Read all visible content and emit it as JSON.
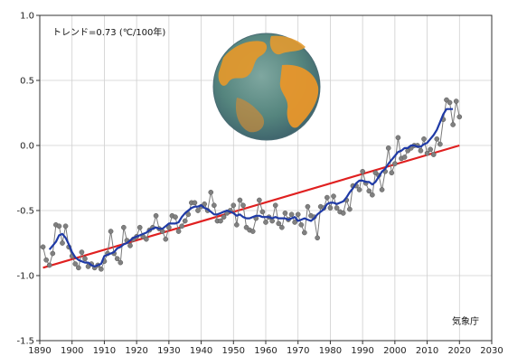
{
  "chart_data": {
    "type": "line",
    "annotation": "トレンド=0.73 (℃/100年)",
    "credit": "気象庁",
    "xlim": [
      1890,
      2030
    ],
    "ylim": [
      -1.5,
      1.0
    ],
    "x_ticks": [
      1890,
      1900,
      1910,
      1920,
      1930,
      1940,
      1950,
      1960,
      1970,
      1980,
      1990,
      2000,
      2010,
      2020,
      2030
    ],
    "y_ticks": [
      1.0,
      0.5,
      0.0,
      -0.5,
      -1.0,
      -1.5
    ],
    "y_tick_labels": [
      "1.0",
      "0.5",
      "0.0",
      "-0.5",
      "-1.0",
      "-1.5"
    ],
    "grid": true,
    "colors": {
      "annual_line": "#7a7a7a",
      "annual_marker": "#808080",
      "moving_average": "#1f3aa6",
      "trend": "#e02020",
      "grid": "#cfcfcf"
    },
    "series": [
      {
        "x": [
          1891,
          1892,
          1893,
          1894,
          1895,
          1896,
          1897,
          1898,
          1899,
          1900,
          1901,
          1902,
          1903,
          1904,
          1905,
          1906,
          1907,
          1908,
          1909,
          1910,
          1911,
          1912,
          1913,
          1914,
          1915,
          1916,
          1917,
          1918,
          1919,
          1920,
          1921,
          1922,
          1923,
          1924,
          1925,
          1926,
          1927,
          1928,
          1929,
          1930,
          1931,
          1932,
          1933,
          1934,
          1935,
          1936,
          1937,
          1938,
          1939,
          1940,
          1941,
          1942,
          1943,
          1944,
          1945,
          1946,
          1947,
          1948,
          1949,
          1950,
          1951,
          1952,
          1953,
          1954,
          1955,
          1956,
          1957,
          1958,
          1959,
          1960,
          1961,
          1962,
          1963,
          1964,
          1965,
          1966,
          1967,
          1968,
          1969,
          1970,
          1971,
          1972,
          1973,
          1974,
          1975,
          1976,
          1977,
          1978,
          1979,
          1980,
          1981,
          1982,
          1983,
          1984,
          1985,
          1986,
          1987,
          1988,
          1989,
          1990,
          1991,
          1992,
          1993,
          1994,
          1995,
          1996,
          1997,
          1998,
          1999,
          2000,
          2001,
          2002,
          2003,
          2004,
          2005,
          2006,
          2007,
          2008,
          2009,
          2010,
          2011,
          2012,
          2013,
          2014,
          2015,
          2016,
          2017,
          2018,
          2019,
          2020
        ],
        "values": [
          -0.78,
          -0.88,
          -0.92,
          -0.83,
          -0.61,
          -0.62,
          -0.75,
          -0.62,
          -0.78,
          -0.85,
          -0.91,
          -0.94,
          -0.82,
          -0.87,
          -0.93,
          -0.91,
          -0.94,
          -0.92,
          -0.95,
          -0.89,
          -0.83,
          -0.66,
          -0.83,
          -0.87,
          -0.9,
          -0.63,
          -0.73,
          -0.77,
          -0.72,
          -0.7,
          -0.63,
          -0.7,
          -0.72,
          -0.65,
          -0.63,
          -0.54,
          -0.64,
          -0.66,
          -0.72,
          -0.63,
          -0.54,
          -0.55,
          -0.66,
          -0.62,
          -0.58,
          -0.53,
          -0.44,
          -0.44,
          -0.5,
          -0.47,
          -0.45,
          -0.5,
          -0.36,
          -0.46,
          -0.58,
          -0.58,
          -0.55,
          -0.52,
          -0.5,
          -0.46,
          -0.61,
          -0.42,
          -0.46,
          -0.63,
          -0.65,
          -0.66,
          -0.56,
          -0.42,
          -0.51,
          -0.59,
          -0.55,
          -0.58,
          -0.46,
          -0.6,
          -0.63,
          -0.52,
          -0.57,
          -0.53,
          -0.59,
          -0.53,
          -0.61,
          -0.67,
          -0.47,
          -0.54,
          -0.55,
          -0.71,
          -0.47,
          -0.48,
          -0.4,
          -0.48,
          -0.39,
          -0.48,
          -0.51,
          -0.52,
          -0.42,
          -0.49,
          -0.31,
          -0.31,
          -0.34,
          -0.2,
          -0.29,
          -0.35,
          -0.38,
          -0.21,
          -0.23,
          -0.34,
          -0.2,
          -0.02,
          -0.21,
          -0.14,
          0.06,
          -0.1,
          -0.09,
          -0.04,
          -0.02,
          0.0,
          0.0,
          -0.04,
          0.05,
          -0.06,
          -0.03,
          -0.07,
          0.05,
          0.01,
          0.2,
          0.35,
          0.33,
          0.16,
          0.34,
          0.22
        ]
      },
      {
        "x": [
          1893,
          1894,
          1895,
          1896,
          1897,
          1898,
          1899,
          1900,
          1901,
          1902,
          1903,
          1904,
          1905,
          1906,
          1907,
          1908,
          1909,
          1910,
          1911,
          1912,
          1913,
          1914,
          1915,
          1916,
          1917,
          1918,
          1919,
          1920,
          1921,
          1922,
          1923,
          1924,
          1925,
          1926,
          1927,
          1928,
          1929,
          1930,
          1931,
          1932,
          1933,
          1934,
          1935,
          1936,
          1937,
          1938,
          1939,
          1940,
          1941,
          1942,
          1943,
          1944,
          1945,
          1946,
          1947,
          1948,
          1949,
          1950,
          1951,
          1952,
          1953,
          1954,
          1955,
          1956,
          1957,
          1958,
          1959,
          1960,
          1961,
          1962,
          1963,
          1964,
          1965,
          1966,
          1967,
          1968,
          1969,
          1970,
          1971,
          1972,
          1973,
          1974,
          1975,
          1976,
          1977,
          1978,
          1979,
          1980,
          1981,
          1982,
          1983,
          1984,
          1985,
          1986,
          1987,
          1988,
          1989,
          1990,
          1991,
          1992,
          1993,
          1994,
          1995,
          1996,
          1997,
          1998,
          1999,
          2000,
          2001,
          2002,
          2003,
          2004,
          2005,
          2006,
          2007,
          2008,
          2009,
          2010,
          2011,
          2012,
          2013,
          2014,
          2015,
          2016,
          2017,
          2018
        ],
        "values": [
          -0.8,
          -0.77,
          -0.74,
          -0.69,
          -0.68,
          -0.71,
          -0.76,
          -0.82,
          -0.86,
          -0.88,
          -0.89,
          -0.9,
          -0.9,
          -0.92,
          -0.93,
          -0.92,
          -0.91,
          -0.85,
          -0.84,
          -0.83,
          -0.82,
          -0.79,
          -0.78,
          -0.76,
          -0.75,
          -0.73,
          -0.71,
          -0.7,
          -0.69,
          -0.68,
          -0.67,
          -0.65,
          -0.64,
          -0.63,
          -0.64,
          -0.64,
          -0.62,
          -0.6,
          -0.6,
          -0.6,
          -0.59,
          -0.55,
          -0.52,
          -0.5,
          -0.48,
          -0.47,
          -0.47,
          -0.46,
          -0.48,
          -0.49,
          -0.51,
          -0.53,
          -0.53,
          -0.52,
          -0.51,
          -0.5,
          -0.51,
          -0.52,
          -0.54,
          -0.53,
          -0.55,
          -0.56,
          -0.56,
          -0.55,
          -0.54,
          -0.54,
          -0.55,
          -0.55,
          -0.55,
          -0.56,
          -0.55,
          -0.56,
          -0.56,
          -0.56,
          -0.57,
          -0.56,
          -0.55,
          -0.58,
          -0.57,
          -0.56,
          -0.57,
          -0.58,
          -0.56,
          -0.53,
          -0.51,
          -0.49,
          -0.45,
          -0.44,
          -0.44,
          -0.45,
          -0.44,
          -0.43,
          -0.4,
          -0.36,
          -0.33,
          -0.29,
          -0.27,
          -0.27,
          -0.28,
          -0.28,
          -0.3,
          -0.28,
          -0.24,
          -0.2,
          -0.18,
          -0.14,
          -0.11,
          -0.08,
          -0.05,
          -0.04,
          -0.02,
          -0.02,
          0.0,
          0.0,
          -0.01,
          -0.01,
          0.01,
          0.02,
          0.05,
          0.08,
          0.12,
          0.18,
          0.24,
          0.28,
          0.28,
          0.28
        ]
      },
      {
        "x": [
          1891,
          2020
        ],
        "values": [
          -0.94,
          0.0
        ]
      }
    ]
  }
}
